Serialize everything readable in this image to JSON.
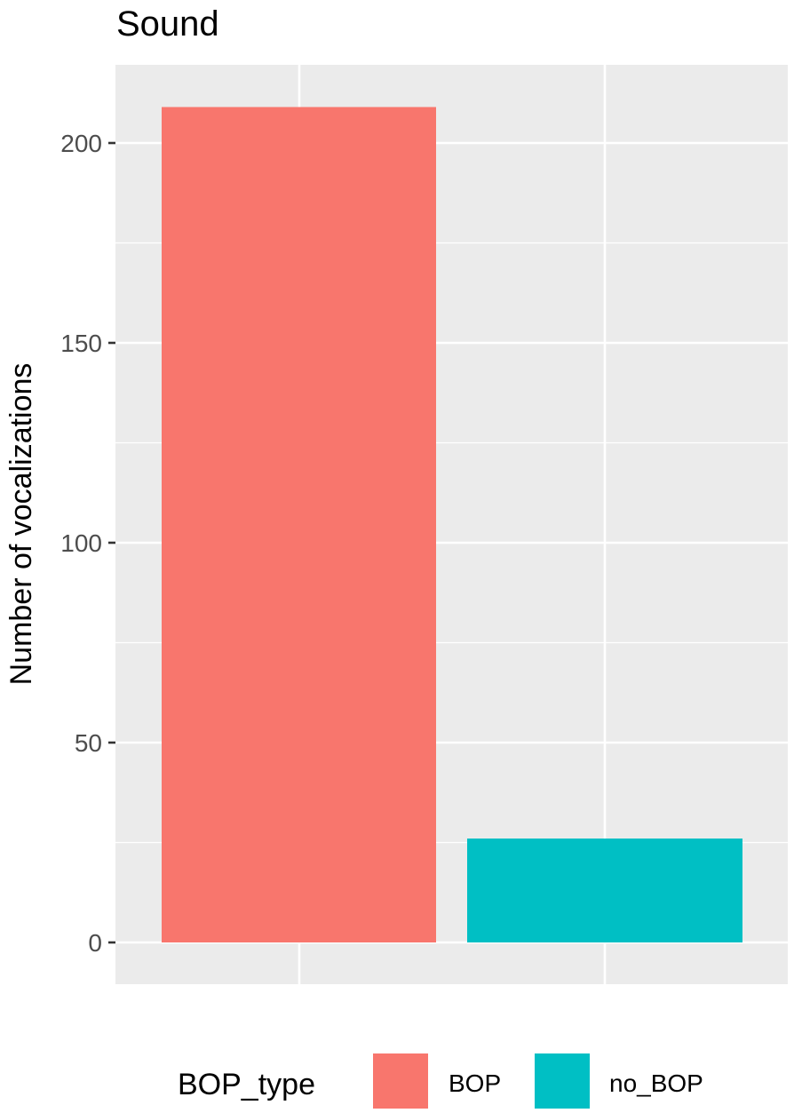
{
  "chart_data": {
    "type": "bar",
    "title": "Sound",
    "xlabel": "",
    "ylabel": "Number of vocalizations",
    "categories": [
      "BOP",
      "no_BOP"
    ],
    "values": [
      209,
      26
    ],
    "colors": [
      "#F8766D",
      "#00BFC4"
    ],
    "ylim": [
      -10,
      220
    ],
    "yticks": [
      0,
      50,
      100,
      150,
      200
    ],
    "ytick_labels": [
      "0",
      "50",
      "100",
      "150",
      "200"
    ],
    "grid": true,
    "legend": {
      "title": "BOP_type",
      "position": "bottom",
      "entries": [
        {
          "label": "BOP",
          "color": "#F8766D"
        },
        {
          "label": "no_BOP",
          "color": "#00BFC4"
        }
      ]
    }
  }
}
